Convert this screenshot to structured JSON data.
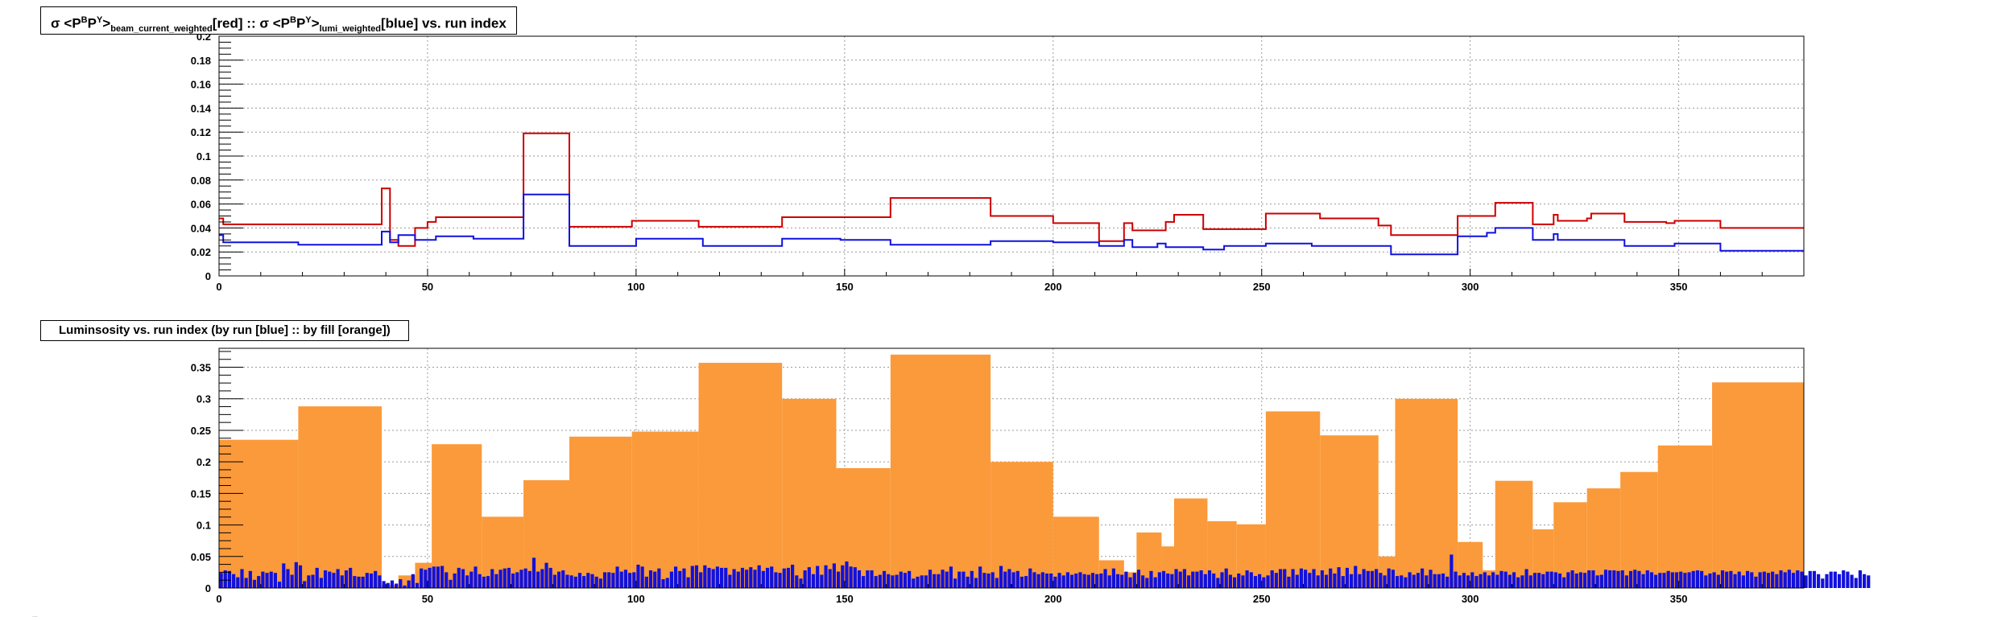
{
  "title1": {
    "sigma": "σ",
    "lt": "<",
    "pb_base": "P",
    "pb_sup": "B",
    "py_base": "P",
    "py_sup": "Y",
    "gt": ">",
    "sub1": "beam_current_weighted",
    "red_tag": "[red] :: ",
    "sigma2": "σ",
    "lt2": "<",
    "pb_base2": "P",
    "pb_sup2": "B",
    "py_base2": "P",
    "py_sup2": "Y",
    "gt2": ">",
    "sub2": "lumi_weighted",
    "blue_tag": "[blue] vs. run index"
  },
  "title2": "Luminsosity vs. run index (by run [blue] :: by fill [orange])",
  "footer": "...",
  "colors": {
    "red": "#cc0000",
    "blue": "#1111dd",
    "orange": "#fb9a3a",
    "grid": "#9a9a9a"
  },
  "chart_data": [
    {
      "type": "line",
      "title": "σ <P^B P^Y>_beam_current_weighted[red] :: σ <P^B P^Y>_lumi_weighted[blue] vs. run index",
      "xlim": [
        0,
        380
      ],
      "ylim": [
        0,
        0.2
      ],
      "x_ticks": [
        "0",
        "50",
        "100",
        "150",
        "200",
        "250",
        "300",
        "350"
      ],
      "y_ticks": [
        "0",
        "0.02",
        "0.04",
        "0.06",
        "0.08",
        "0.1",
        "0.12",
        "0.14",
        "0.16",
        "0.18",
        "0.2"
      ],
      "grid": true,
      "series": [
        {
          "color": "red",
          "steps": [
            [
              0,
              0.048
            ],
            [
              1,
              0.043
            ],
            [
              20,
              0.043
            ],
            [
              38,
              0.043
            ],
            [
              39,
              0.073
            ],
            [
              41,
              0.03
            ],
            [
              43,
              0.025
            ],
            [
              47,
              0.04
            ],
            [
              50,
              0.045
            ],
            [
              52,
              0.049
            ],
            [
              73,
              0.119
            ],
            [
              84,
              0.041
            ],
            [
              99,
              0.046
            ],
            [
              115,
              0.041
            ],
            [
              135,
              0.049
            ],
            [
              161,
              0.065
            ],
            [
              185,
              0.05
            ],
            [
              200,
              0.044
            ],
            [
              211,
              0.029
            ],
            [
              217,
              0.044
            ],
            [
              219,
              0.038
            ],
            [
              227,
              0.045
            ],
            [
              229,
              0.051
            ],
            [
              236,
              0.039
            ],
            [
              251,
              0.052
            ],
            [
              264,
              0.048
            ],
            [
              278,
              0.042
            ],
            [
              281,
              0.034
            ],
            [
              297,
              0.05
            ],
            [
              306,
              0.061
            ],
            [
              315,
              0.043
            ],
            [
              320,
              0.051
            ],
            [
              321,
              0.046
            ],
            [
              328,
              0.048
            ],
            [
              329,
              0.052
            ],
            [
              337,
              0.045
            ],
            [
              347,
              0.044
            ],
            [
              349,
              0.046
            ],
            [
              360,
              0.04
            ],
            [
              380,
              0.04
            ]
          ]
        },
        {
          "color": "blue",
          "steps": [
            [
              0,
              0.034
            ],
            [
              1,
              0.028
            ],
            [
              19,
              0.026
            ],
            [
              39,
              0.037
            ],
            [
              41,
              0.028
            ],
            [
              43,
              0.034
            ],
            [
              47,
              0.03
            ],
            [
              52,
              0.033
            ],
            [
              61,
              0.031
            ],
            [
              73,
              0.068
            ],
            [
              84,
              0.025
            ],
            [
              100,
              0.031
            ],
            [
              116,
              0.025
            ],
            [
              135,
              0.031
            ],
            [
              149,
              0.03
            ],
            [
              161,
              0.026
            ],
            [
              185,
              0.029
            ],
            [
              200,
              0.028
            ],
            [
              211,
              0.025
            ],
            [
              217,
              0.03
            ],
            [
              219,
              0.024
            ],
            [
              225,
              0.027
            ],
            [
              227,
              0.024
            ],
            [
              236,
              0.022
            ],
            [
              241,
              0.025
            ],
            [
              251,
              0.027
            ],
            [
              262,
              0.025
            ],
            [
              281,
              0.018
            ],
            [
              297,
              0.033
            ],
            [
              304,
              0.036
            ],
            [
              306,
              0.04
            ],
            [
              315,
              0.03
            ],
            [
              320,
              0.035
            ],
            [
              321,
              0.03
            ],
            [
              337,
              0.025
            ],
            [
              349,
              0.027
            ],
            [
              360,
              0.021
            ],
            [
              380,
              0.021
            ]
          ]
        }
      ]
    },
    {
      "type": "bar",
      "title": "Luminsosity vs. run index (by run [blue] :: by fill [orange])",
      "xlim": [
        0,
        380
      ],
      "ylim": [
        0,
        0.38
      ],
      "x_ticks": [
        "0",
        "50",
        "100",
        "150",
        "200",
        "250",
        "300",
        "350"
      ],
      "y_ticks": [
        "0",
        "0.05",
        "0.1",
        "0.15",
        "0.2",
        "0.25",
        "0.3",
        "0.35"
      ],
      "grid": true,
      "series": [
        {
          "name": "by fill",
          "color": "orange",
          "fills": [
            [
              0,
              19,
              0.235
            ],
            [
              19,
              39,
              0.288
            ],
            [
              39,
              43,
              0.005
            ],
            [
              43,
              47,
              0.02
            ],
            [
              47,
              51,
              0.04
            ],
            [
              51,
              63,
              0.228
            ],
            [
              63,
              73,
              0.113
            ],
            [
              73,
              84,
              0.171
            ],
            [
              84,
              99,
              0.24
            ],
            [
              99,
              115,
              0.248
            ],
            [
              115,
              135,
              0.357
            ],
            [
              135,
              148,
              0.3
            ],
            [
              148,
              161,
              0.19
            ],
            [
              161,
              185,
              0.37
            ],
            [
              185,
              200,
              0.2
            ],
            [
              200,
              211,
              0.113
            ],
            [
              211,
              217,
              0.044
            ],
            [
              217,
              220,
              0.025
            ],
            [
              220,
              226,
              0.088
            ],
            [
              226,
              229,
              0.066
            ],
            [
              229,
              237,
              0.142
            ],
            [
              237,
              244,
              0.106
            ],
            [
              244,
              251,
              0.101
            ],
            [
              251,
              264,
              0.28
            ],
            [
              264,
              278,
              0.242
            ],
            [
              278,
              282,
              0.05
            ],
            [
              282,
              297,
              0.3
            ],
            [
              297,
              303,
              0.073
            ],
            [
              303,
              306,
              0.028
            ],
            [
              306,
              315,
              0.17
            ],
            [
              315,
              320,
              0.093
            ],
            [
              320,
              328,
              0.136
            ],
            [
              328,
              336,
              0.158
            ],
            [
              336,
              345,
              0.184
            ],
            [
              345,
              358,
              0.226
            ],
            [
              358,
              380,
              0.326
            ]
          ]
        },
        {
          "name": "by run",
          "color": "blue",
          "runs": [
            0.024,
            0.028,
            0.027,
            0.022,
            0.017,
            0.03,
            0.016,
            0.027,
            0.013,
            0.019,
            0.026,
            0.024,
            0.026,
            0.024,
            0.01,
            0.039,
            0.03,
            0.021,
            0.041,
            0.036,
            0.011,
            0.02,
            0.021,
            0.032,
            0.016,
            0.028,
            0.026,
            0.024,
            0.03,
            0.02,
            0.028,
            0.032,
            0.019,
            0.018,
            0.018,
            0.024,
            0.023,
            0.027,
            0.02,
            0.011,
            0.008,
            0.012,
            0.007,
            0.014,
            0.004,
            0.012,
            0.022,
            0.008,
            0.031,
            0.029,
            0.032,
            0.034,
            0.034,
            0.035,
            0.025,
            0.013,
            0.023,
            0.032,
            0.03,
            0.02,
            0.026,
            0.034,
            0.022,
            0.018,
            0.019,
            0.03,
            0.022,
            0.029,
            0.031,
            0.032,
            0.023,
            0.025,
            0.029,
            0.031,
            0.027,
            0.048,
            0.026,
            0.03,
            0.04,
            0.032,
            0.021,
            0.026,
            0.028,
            0.021,
            0.02,
            0.018,
            0.024,
            0.019,
            0.024,
            0.022,
            0.018,
            0.015,
            0.025,
            0.025,
            0.024,
            0.034,
            0.026,
            0.029,
            0.024,
            0.025,
            0.037,
            0.034,
            0.018,
            0.028,
            0.026,
            0.031,
            0.014,
            0.016,
            0.026,
            0.034,
            0.027,
            0.031,
            0.017,
            0.035,
            0.036,
            0.025,
            0.036,
            0.032,
            0.03,
            0.034,
            0.032,
            0.032,
            0.021,
            0.03,
            0.026,
            0.032,
            0.029,
            0.033,
            0.029,
            0.036,
            0.027,
            0.032,
            0.034,
            0.025,
            0.024,
            0.031,
            0.032,
            0.037,
            0.02,
            0.015,
            0.028,
            0.033,
            0.022,
            0.035,
            0.021,
            0.036,
            0.03,
            0.039,
            0.026,
            0.036,
            0.042,
            0.034,
            0.033,
            0.028,
            0.019,
            0.028,
            0.028,
            0.019,
            0.021,
            0.027,
            0.022,
            0.02,
            0.021,
            0.026,
            0.024,
            0.027,
            0.015,
            0.018,
            0.02,
            0.02,
            0.029,
            0.022,
            0.022,
            0.029,
            0.026,
            0.034,
            0.015,
            0.026,
            0.026,
            0.018,
            0.027,
            0.016,
            0.034,
            0.024,
            0.023,
            0.025,
            0.016,
            0.035,
            0.026,
            0.03,
            0.025,
            0.027,
            0.018,
            0.019,
            0.031,
            0.025,
            0.022,
            0.025,
            0.023,
            0.023,
            0.018,
            0.024,
            0.02,
            0.025,
            0.021,
            0.023,
            0.025,
            0.022,
            0.021,
            0.024,
            0.022,
            0.023,
            0.03,
            0.02,
            0.031,
            0.022,
            0.021,
            0.026,
            0.017,
            0.024,
            0.029,
            0.02,
            0.016,
            0.027,
            0.017,
            0.025,
            0.027,
            0.023,
            0.022,
            0.03,
            0.026,
            0.03,
            0.02,
            0.026,
            0.026,
            0.028,
            0.022,
            0.028,
            0.023,
            0.016,
            0.025,
            0.031,
            0.021,
            0.017,
            0.023,
            0.02,
            0.028,
            0.025,
            0.019,
            0.022,
            0.017,
            0.02,
            0.028,
            0.024,
            0.03,
            0.03,
            0.018,
            0.03,
            0.021,
            0.031,
            0.029,
            0.024,
            0.03,
            0.02,
            0.028,
            0.021,
            0.031,
            0.023,
            0.033,
            0.019,
            0.032,
            0.022,
            0.035,
            0.022,
            0.03,
            0.027,
            0.027,
            0.03,
            0.024,
            0.02,
            0.031,
            0.029,
            0.019,
            0.02,
            0.017,
            0.025,
            0.021,
            0.024,
            0.031,
            0.02,
            0.029,
            0.022,
            0.022,
            0.023,
            0.018,
            0.053,
            0.026,
            0.02,
            0.024,
            0.02,
            0.025,
            0.019,
            0.022,
            0.025,
            0.02,
            0.025,
            0.021,
            0.027,
            0.026,
            0.021,
            0.025,
            0.017,
            0.02,
            0.03,
            0.02,
            0.024,
            0.024,
            0.022,
            0.026,
            0.026,
            0.025,
            0.023,
            0.017,
            0.025,
            0.028,
            0.023,
            0.025,
            0.024,
            0.028,
            0.028,
            0.02,
            0.021,
            0.029,
            0.028,
            0.028,
            0.027,
            0.028,
            0.02,
            0.027,
            0.029,
            0.027,
            0.022,
            0.028,
            0.025,
            0.021,
            0.024,
            0.024,
            0.027,
            0.025,
            0.025,
            0.026,
            0.024,
            0.025,
            0.027,
            0.028,
            0.027,
            0.02,
            0.023,
            0.025,
            0.021,
            0.028,
            0.026,
            0.027,
            0.022,
            0.026,
            0.02,
            0.027,
            0.025,
            0.018,
            0.025,
            0.026,
            0.024,
            0.026,
            0.022,
            0.028,
            0.025,
            0.029,
            0.024,
            0.028,
            0.026,
            0.02,
            0.027,
            0.027,
            0.022,
            0.015,
            0.022,
            0.026,
            0.026,
            0.022,
            0.028,
            0.026,
            0.021,
            0.016,
            0.028,
            0.022,
            0.02
          ]
        }
      ]
    }
  ]
}
